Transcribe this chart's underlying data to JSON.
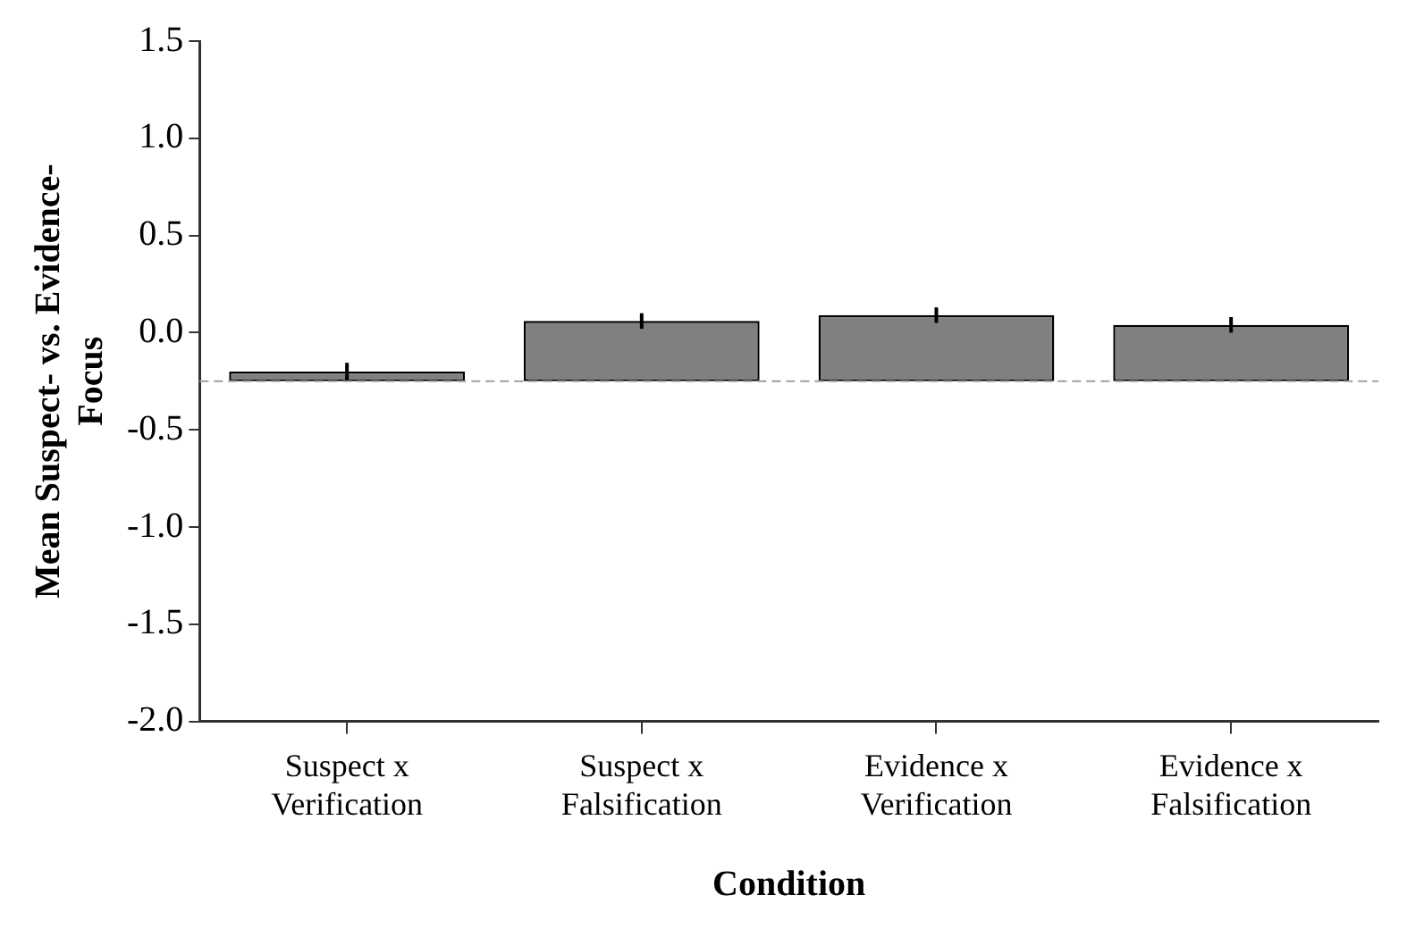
{
  "chart_data": {
    "type": "bar",
    "xlabel": "Condition",
    "ylabel": "Mean Suspect- vs. Evidence-\nFocus",
    "categories": [
      "Suspect x\nVerification",
      "Suspect x\nFalsification",
      "Evidence x\nVerification",
      "Evidence x\nFalsification"
    ],
    "base": [
      -0.25,
      -0.25,
      -0.25,
      -0.25
    ],
    "values": [
      0.05,
      0.31,
      0.34,
      0.29
    ],
    "errors": [
      0.045,
      0.04,
      0.04,
      0.04
    ],
    "color": "#808080",
    "ylim": [
      -2.0,
      1.5
    ],
    "yticks": [
      {
        "value": 1.5,
        "label": "1.5"
      },
      {
        "value": 1,
        "label": "1.0"
      },
      {
        "value": 0.5,
        "label": "0.5"
      },
      {
        "value": 0,
        "label": "0.0"
      },
      {
        "value": -0.5,
        "label": "-0.5"
      },
      {
        "value": -1,
        "label": "-1.0"
      },
      {
        "value": -1.5,
        "label": "-1.5"
      },
      {
        "value": -2,
        "label": "-2.0"
      }
    ],
    "ref_lines": [
      {
        "axis": "y",
        "value": -0.25,
        "color": "#a0a0a0",
        "line_style": "dashed"
      }
    ],
    "grid": false,
    "legend": false
  }
}
